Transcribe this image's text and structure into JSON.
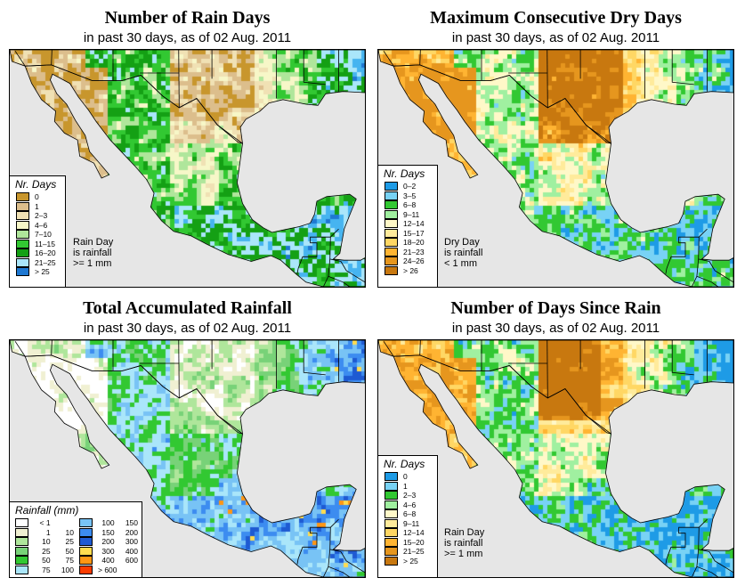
{
  "palettes": {
    "rain_days": [
      "#c8962d",
      "#dcbe8c",
      "#f0e1b4",
      "#f7f7c8",
      "#afe69b",
      "#32c832",
      "#14a014",
      "#aae6fa",
      "#46b4f0",
      "#1e78d2"
    ],
    "dry_days": [
      "#1e9be6",
      "#78d2f5",
      "#32c832",
      "#a0f0a0",
      "#fff8c8",
      "#ffeb9b",
      "#ffd764",
      "#ffb432",
      "#e6961e",
      "#c8780f"
    ],
    "rainfall": [
      "#ffffff",
      "#f0f0d2",
      "#afe69b",
      "#78d278",
      "#32c832",
      "#aae6fa",
      "#78c3f5",
      "#3c8cf0",
      "#1e5ad2",
      "#ffdc50",
      "#ff9614",
      "#fa3c00"
    ],
    "since_rain": [
      "#1e9be6",
      "#78d2f5",
      "#32c832",
      "#a0f0a0",
      "#fff8c8",
      "#ffeb9b",
      "#ffd764",
      "#ffb432",
      "#e6961e",
      "#c8780f"
    ]
  },
  "panels": [
    {
      "id": "rain-days",
      "title": "Number of Rain Days",
      "subtitle": "in past 30 days, as of  02 Aug. 2011",
      "legend_title": "Nr. Days",
      "legend": [
        {
          "label": "0",
          "color": "#c8962d"
        },
        {
          "label": "1",
          "color": "#dcbe8c"
        },
        {
          "label": "2–3",
          "color": "#f0e1b4"
        },
        {
          "label": "4–6",
          "color": "#f7f7c8"
        },
        {
          "label": "7–10",
          "color": "#afe69b"
        },
        {
          "label": "11–15",
          "color": "#32c832"
        },
        {
          "label": "16–20",
          "color": "#14a014"
        },
        {
          "label": "21–25",
          "color": "#aae6fa"
        },
        {
          "label": "> 25",
          "color": "#1e78d2"
        }
      ],
      "note": [
        "Rain Day",
        "is rainfall",
        ">= 1 mm"
      ]
    },
    {
      "id": "dry-days",
      "title": "Maximum Consecutive Dry Days",
      "subtitle": "in past 30 days, as of  02 Aug. 2011",
      "legend_title": "Nr. Days",
      "legend": [
        {
          "label": "0–2",
          "color": "#1e9be6"
        },
        {
          "label": "3–5",
          "color": "#78d2f5"
        },
        {
          "label": "6–8",
          "color": "#32c832"
        },
        {
          "label": "9–11",
          "color": "#a0f0a0"
        },
        {
          "label": "12–14",
          "color": "#fff8c8"
        },
        {
          "label": "15–17",
          "color": "#ffeb9b"
        },
        {
          "label": "18–20",
          "color": "#ffd764"
        },
        {
          "label": "21–23",
          "color": "#ffb432"
        },
        {
          "label": "24–26",
          "color": "#e6961e"
        },
        {
          "label": "> 26",
          "color": "#c8780f"
        }
      ],
      "note": [
        "Dry Day",
        "is rainfall",
        "< 1 mm"
      ]
    },
    {
      "id": "total-rainfall",
      "title": "Total Accumulated Rainfall",
      "subtitle": "in past 30 days, as of  02 Aug. 2011",
      "legend_title": "Rainfall (mm)",
      "legend": [
        {
          "a": "< 1",
          "b": "",
          "color": "#ffffff"
        },
        {
          "a": "100",
          "b": "150",
          "color": "#78c3f5"
        },
        {
          "a": "1",
          "b": "10",
          "color": "#f0f0d2"
        },
        {
          "a": "150",
          "b": "200",
          "color": "#3c8cf0"
        },
        {
          "a": "10",
          "b": "25",
          "color": "#afe69b"
        },
        {
          "a": "200",
          "b": "300",
          "color": "#1e5ad2"
        },
        {
          "a": "25",
          "b": "50",
          "color": "#78d278"
        },
        {
          "a": "300",
          "b": "400",
          "color": "#ffdc50"
        },
        {
          "a": "50",
          "b": "75",
          "color": "#32c832"
        },
        {
          "a": "400",
          "b": "600",
          "color": "#ff9614"
        },
        {
          "a": "75",
          "b": "100",
          "color": "#aae6fa"
        },
        {
          "a": "> 600",
          "b": "",
          "color": "#fa3c00"
        }
      ],
      "note": []
    },
    {
      "id": "days-since-rain",
      "title": "Number of Days Since Rain",
      "subtitle": "in past 30 days, as of  02 Aug. 2011",
      "legend_title": "Nr. Days",
      "legend": [
        {
          "label": "0",
          "color": "#1e9be6"
        },
        {
          "label": "1",
          "color": "#78d2f5"
        },
        {
          "label": "2–3",
          "color": "#32c832"
        },
        {
          "label": "4–6",
          "color": "#a0f0a0"
        },
        {
          "label": "6–8",
          "color": "#fff8c8"
        },
        {
          "label": "9–11",
          "color": "#ffeb9b"
        },
        {
          "label": "12–14",
          "color": "#ffd764"
        },
        {
          "label": "15–20",
          "color": "#ffb432"
        },
        {
          "label": "21–25",
          "color": "#e6961e"
        },
        {
          "label": "> 25",
          "color": "#c8780f"
        }
      ],
      "note": [
        "Rain Day",
        "is rainfall",
        ">= 1 mm"
      ]
    }
  ]
}
